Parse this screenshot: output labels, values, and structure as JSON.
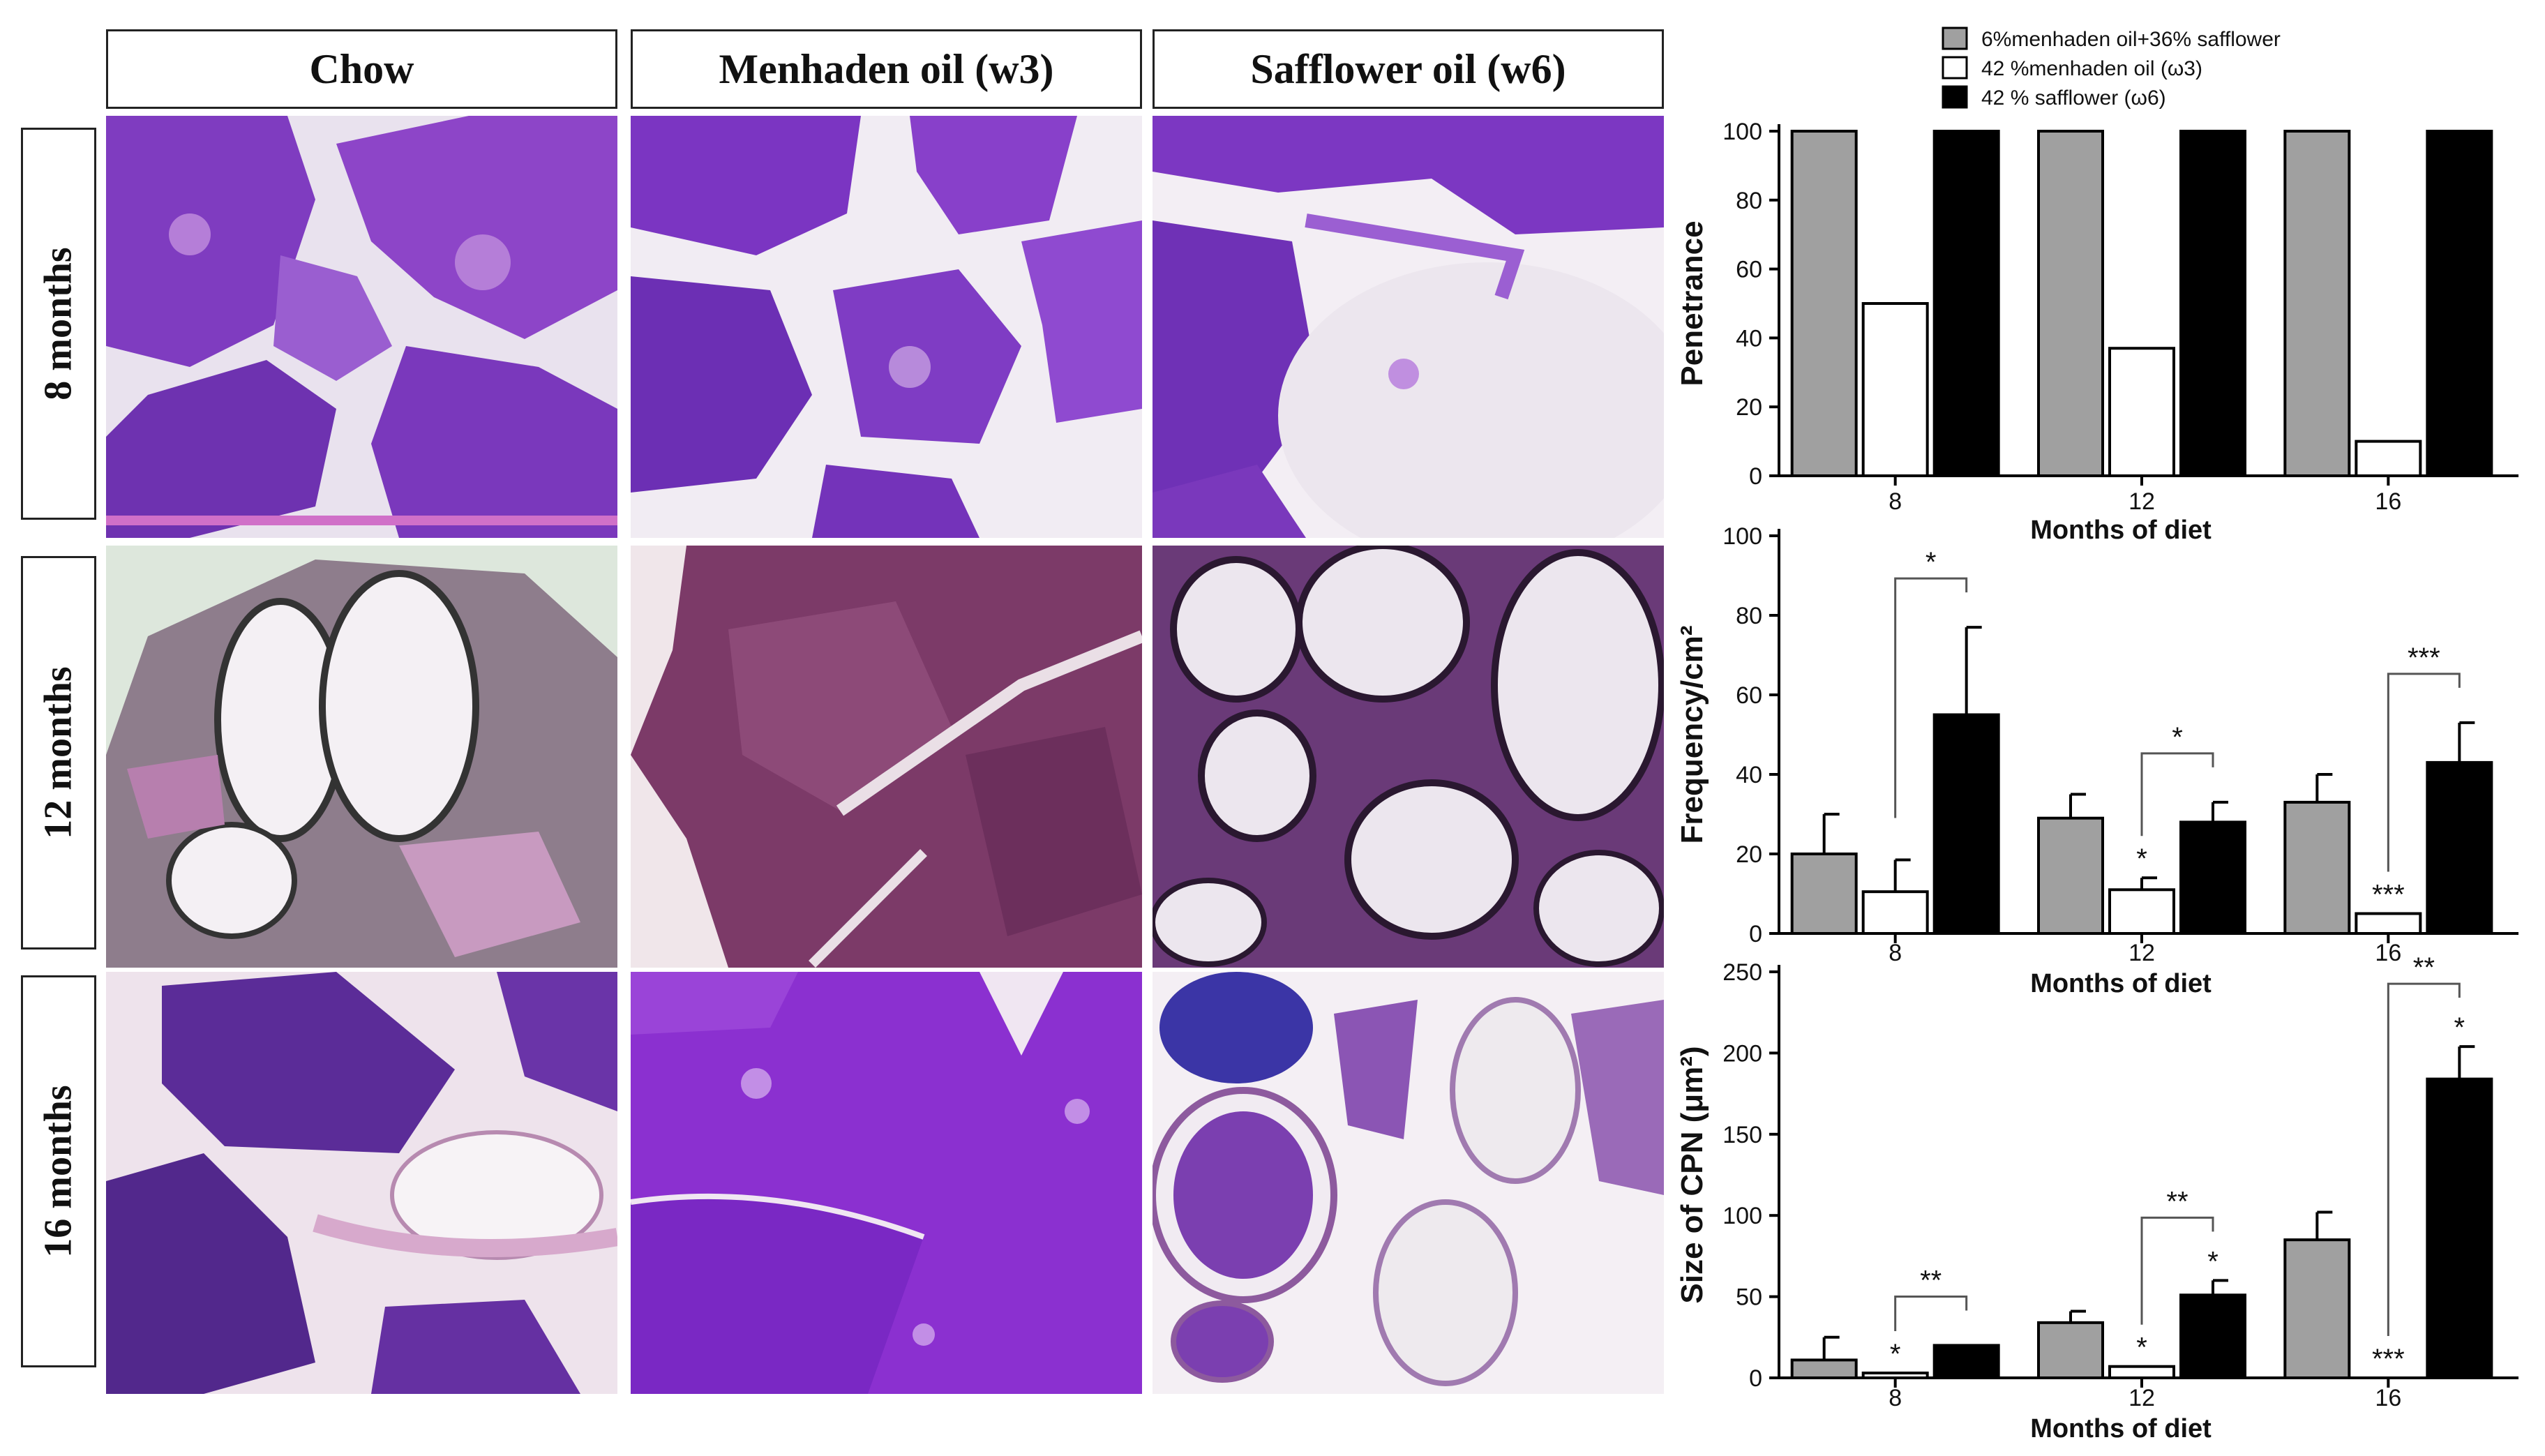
{
  "columns": [
    "Chow",
    "Menhaden oil (w3)",
    "Safflower oil (w6)"
  ],
  "rows": [
    "8 months",
    "12 months",
    "16 months"
  ],
  "colors": {
    "series1": "#a0a0a0",
    "series2": "#ffffff",
    "series3": "#000000",
    "tissue_purple": "#8a3fc4",
    "tissue_dark": "#4a1f8c",
    "tissue_pink": "#c98cc4",
    "stroma": "#eee6ef"
  },
  "chart_data": [
    {
      "type": "bar",
      "categories": [
        "8",
        "12",
        "16"
      ],
      "series": [
        {
          "name": "6%menhaden oil+36% safflower",
          "values": [
            100,
            100,
            100
          ]
        },
        {
          "name": "42 %menhaden oil (ω3)",
          "values": [
            50,
            37,
            10
          ]
        },
        {
          "name": "42 %  safflower (ω6)",
          "values": [
            100,
            100,
            100
          ]
        }
      ],
      "xlabel": "Months of diet",
      "ylabel": "Penetrance",
      "ylim": [
        0,
        100
      ],
      "yticks": [
        "0",
        "20",
        "40",
        "60",
        "80",
        "100"
      ],
      "legend": "top"
    },
    {
      "type": "bar",
      "categories": [
        "8",
        "12",
        "16"
      ],
      "series": [
        {
          "name": "6%menhaden oil+36% safflower",
          "values": [
            20,
            29,
            33
          ],
          "errors": [
            10,
            6,
            7
          ]
        },
        {
          "name": "42 %menhaden oil (ω3)",
          "values": [
            10.5,
            11,
            5
          ],
          "errors": [
            8,
            3,
            0
          ]
        },
        {
          "name": "42 %  safflower (ω6)",
          "values": [
            55,
            28,
            43
          ],
          "errors": [
            22,
            5,
            10
          ]
        }
      ],
      "bar_labels": [
        "",
        "*",
        "***"
      ],
      "brackets": [
        {
          "category": 0,
          "label": "*"
        },
        {
          "category": 1,
          "label": "*"
        },
        {
          "category": 2,
          "label": "***"
        }
      ],
      "xlabel": "Months of diet",
      "ylabel": "Frequency/cm²",
      "ylim": [
        0,
        100
      ],
      "yticks": [
        "0",
        "20",
        "40",
        "60",
        "80",
        "100"
      ]
    },
    {
      "type": "bar",
      "categories": [
        "8",
        "12",
        "16"
      ],
      "series": [
        {
          "name": "6%menhaden oil+36% safflower",
          "values": [
            11,
            34,
            85
          ],
          "errors": [
            14,
            7,
            17
          ]
        },
        {
          "name": "42 %menhaden oil (ω3)",
          "values": [
            3,
            7,
            0
          ],
          "errors": [
            0,
            0,
            0
          ]
        },
        {
          "name": "42 %  safflower (ω6)",
          "values": [
            20,
            51,
            184
          ],
          "errors": [
            0,
            9,
            20
          ]
        }
      ],
      "bar_labels_s2": [
        "*",
        "*",
        "***"
      ],
      "bar_labels_s3": [
        "",
        "*",
        "*"
      ],
      "brackets": [
        {
          "category": 0,
          "label": "**"
        },
        {
          "category": 1,
          "label": "**"
        },
        {
          "category": 2,
          "label": "**"
        }
      ],
      "xlabel": "Months of diet",
      "ylabel": "Size of CPN (μm²)",
      "ylim": [
        0,
        250
      ],
      "yticks": [
        "0",
        "50",
        "100",
        "150",
        "200",
        "250"
      ]
    }
  ]
}
